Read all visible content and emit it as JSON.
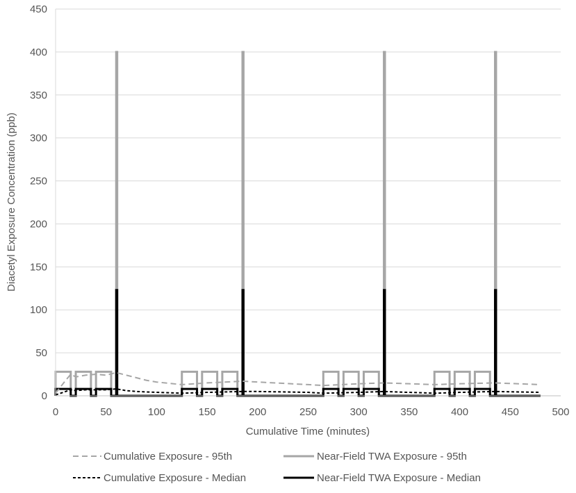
{
  "chart_data": {
    "type": "line",
    "title": "",
    "xlabel": "Cumulative Time (minutes)",
    "ylabel": "Diacetyl Exposure  Concentration (ppb)",
    "xlim": [
      0,
      500
    ],
    "ylim": [
      0,
      450
    ],
    "xticks": [
      0,
      50,
      100,
      150,
      200,
      250,
      300,
      350,
      400,
      450,
      500
    ],
    "yticks": [
      0,
      50,
      100,
      150,
      200,
      250,
      300,
      350,
      400,
      450
    ],
    "grid": "horizontal",
    "legend_position": "bottom",
    "series": [
      {
        "name": "Cumulative Exposure - 95th",
        "color": "#a6a6a6",
        "style": "dashed",
        "x": [
          0,
          10,
          15,
          20,
          30,
          40,
          50,
          60,
          70,
          80,
          90,
          100,
          125,
          150,
          185,
          200,
          250,
          265,
          300,
          325,
          350,
          375,
          400,
          435,
          480
        ],
        "y": [
          3,
          18,
          25,
          22,
          24,
          25,
          24,
          27,
          24,
          21,
          18,
          16,
          13,
          15,
          17,
          16,
          13,
          12,
          14,
          15,
          14,
          13,
          14,
          15,
          13
        ]
      },
      {
        "name": "Near-Field TWA Exposure - 95th",
        "color": "#a6a6a6",
        "style": "solid",
        "x": [
          0,
          0,
          15,
          15,
          20,
          20,
          35,
          35,
          40,
          40,
          55,
          55,
          60,
          60,
          61,
          61,
          125,
          125,
          140,
          140,
          145,
          145,
          160,
          160,
          165,
          165,
          180,
          180,
          185,
          185,
          186,
          186,
          265,
          265,
          280,
          280,
          285,
          285,
          300,
          300,
          305,
          305,
          320,
          320,
          325,
          325,
          326,
          326,
          375,
          375,
          390,
          390,
          395,
          395,
          410,
          410,
          415,
          415,
          430,
          430,
          435,
          435,
          436,
          436,
          480
        ],
        "y": [
          0,
          28,
          28,
          0,
          0,
          28,
          28,
          0,
          0,
          28,
          28,
          0,
          0,
          400,
          400,
          0,
          0,
          28,
          28,
          0,
          0,
          28,
          28,
          0,
          0,
          28,
          28,
          0,
          0,
          400,
          400,
          0,
          0,
          28,
          28,
          0,
          0,
          28,
          28,
          0,
          0,
          28,
          28,
          0,
          0,
          400,
          400,
          0,
          0,
          28,
          28,
          0,
          0,
          28,
          28,
          0,
          0,
          28,
          28,
          0,
          0,
          400,
          400,
          0,
          0
        ]
      },
      {
        "name": "Cumulative Exposure - Median",
        "color": "#000000",
        "style": "dashed",
        "x": [
          0,
          10,
          15,
          20,
          30,
          40,
          50,
          60,
          70,
          80,
          100,
          125,
          150,
          185,
          200,
          250,
          265,
          300,
          325,
          350,
          375,
          400,
          435,
          480
        ],
        "y": [
          1,
          5,
          7,
          6,
          7,
          7,
          7,
          8,
          6,
          5,
          4,
          3,
          4,
          5,
          5,
          4,
          3,
          4,
          5,
          4,
          3,
          4,
          5,
          4
        ]
      },
      {
        "name": "Near-Field TWA Exposure - Median",
        "color": "#000000",
        "style": "solid",
        "x": [
          0,
          0,
          15,
          15,
          20,
          20,
          35,
          35,
          40,
          40,
          55,
          55,
          60,
          60,
          61,
          61,
          125,
          125,
          140,
          140,
          145,
          145,
          160,
          160,
          165,
          165,
          180,
          180,
          185,
          185,
          186,
          186,
          265,
          265,
          280,
          280,
          285,
          285,
          300,
          300,
          305,
          305,
          320,
          320,
          325,
          325,
          326,
          326,
          375,
          375,
          390,
          390,
          395,
          395,
          410,
          410,
          415,
          415,
          430,
          430,
          435,
          435,
          436,
          436,
          480
        ],
        "y": [
          0,
          8,
          8,
          0,
          0,
          8,
          8,
          0,
          0,
          8,
          8,
          0,
          0,
          123,
          123,
          0,
          0,
          8,
          8,
          0,
          0,
          8,
          8,
          0,
          0,
          8,
          8,
          0,
          0,
          123,
          123,
          0,
          0,
          8,
          8,
          0,
          0,
          8,
          8,
          0,
          0,
          8,
          8,
          0,
          0,
          123,
          123,
          0,
          0,
          8,
          8,
          0,
          0,
          8,
          8,
          0,
          0,
          8,
          8,
          0,
          0,
          123,
          123,
          0,
          0
        ]
      }
    ]
  }
}
